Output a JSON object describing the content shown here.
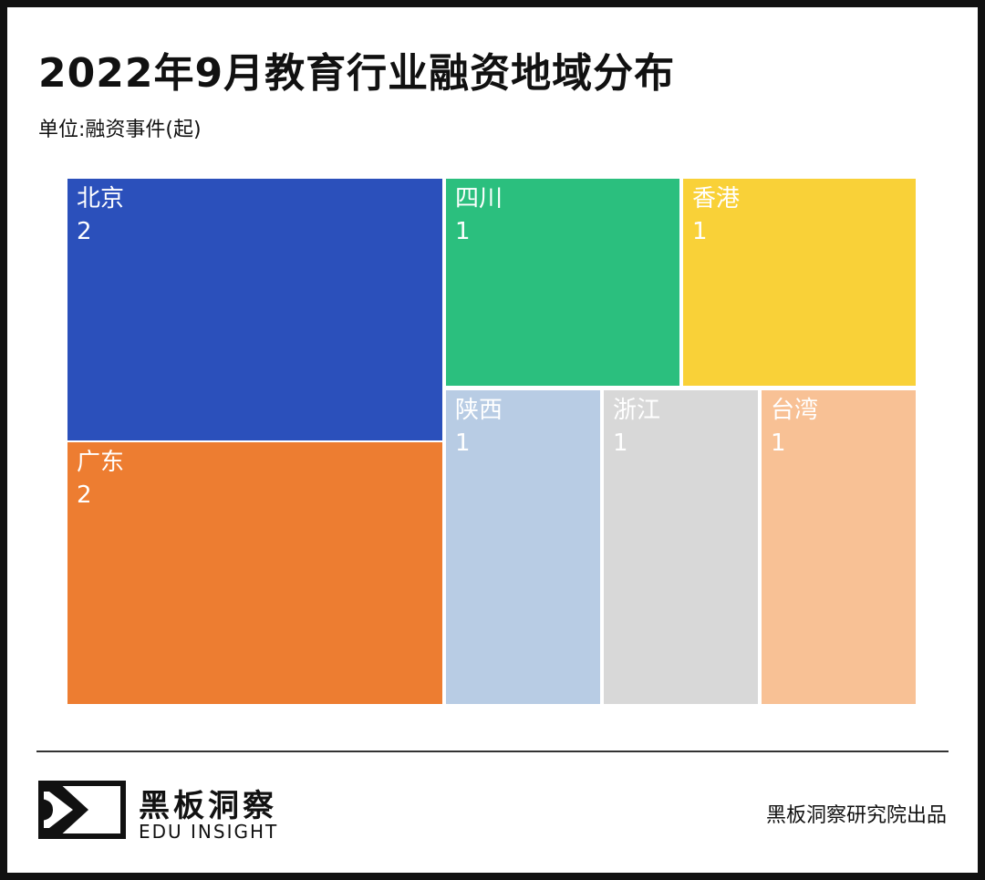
{
  "header": {
    "title": "2022年9月教育行业融资地域分布",
    "unit": "单位:融资事件(起)"
  },
  "chart_data": {
    "type": "treemap",
    "title": "2022年9月教育行业融资地域分布",
    "unit": "单位:融资事件(起)",
    "items": [
      {
        "name": "北京",
        "value": 2,
        "color": "#2b50bb"
      },
      {
        "name": "广东",
        "value": 2,
        "color": "#ed7d31"
      },
      {
        "name": "四川",
        "value": 1,
        "color": "#2bbf7e"
      },
      {
        "name": "香港",
        "value": 1,
        "color": "#f9d138"
      },
      {
        "name": "陕西",
        "value": 1,
        "color": "#b8cce4"
      },
      {
        "name": "浙江",
        "value": 1,
        "color": "#d8d8d8"
      },
      {
        "name": "台湾",
        "value": 1,
        "color": "#f8c195"
      }
    ]
  },
  "footer": {
    "logo_cn": "黑板洞察",
    "logo_en": "EDU INSIGHT",
    "credit": "黑板洞察研究院出品"
  }
}
